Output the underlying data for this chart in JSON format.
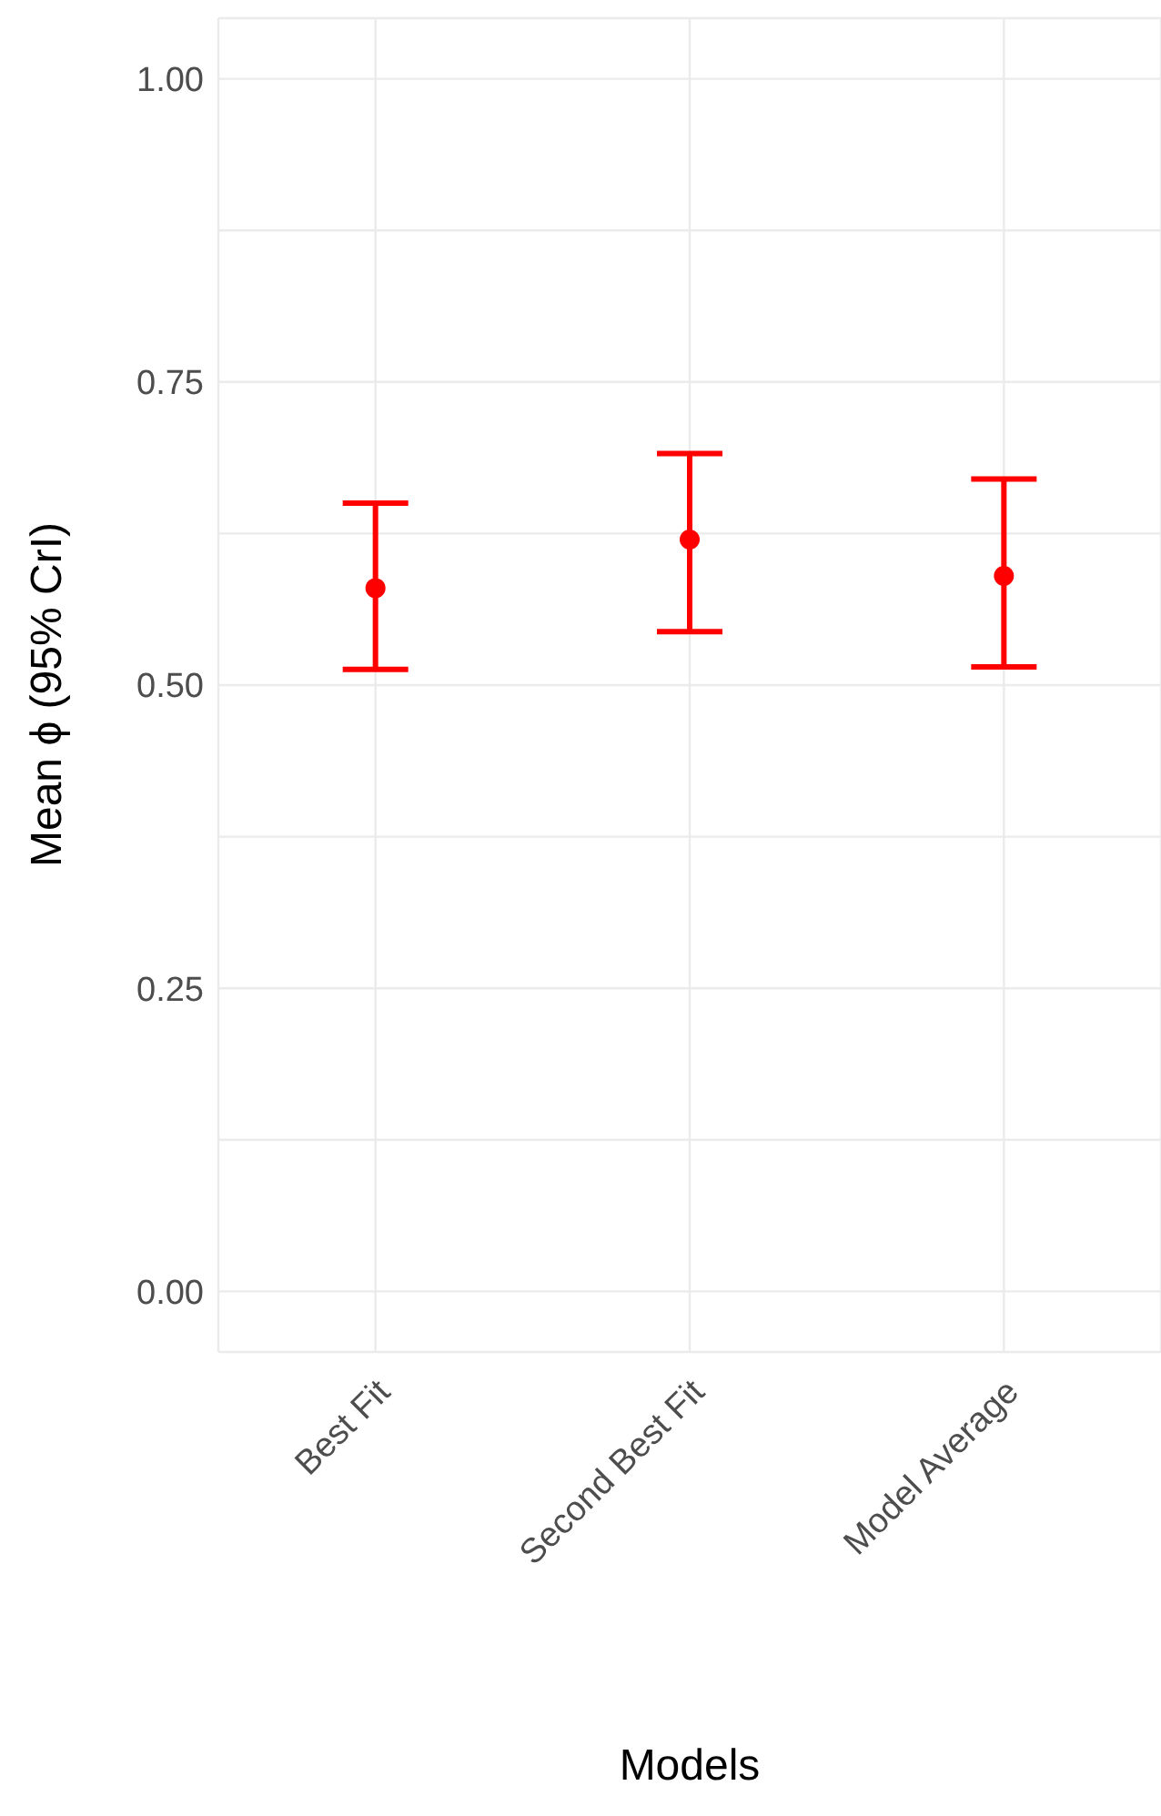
{
  "chart_data": {
    "type": "scatter",
    "xlabel": "Models",
    "ylabel": "Mean ϕ (95% CrI)",
    "categories": [
      "Best Fit",
      "Second Best Fit",
      "Model Average"
    ],
    "series": [
      {
        "color": "#ff0000",
        "values": [
          0.58,
          0.62,
          0.59
        ],
        "errors": [
          [
            0.513,
            0.65
          ],
          [
            0.544,
            0.691
          ],
          [
            0.515,
            0.67
          ]
        ]
      }
    ],
    "ylim": [
      -0.05,
      1.05
    ],
    "yticks": [
      {
        "value": 0,
        "label": "0.00"
      },
      {
        "value": 0.125,
        "label": null
      },
      {
        "value": 0.25,
        "label": "0.25"
      },
      {
        "value": 0.375,
        "label": null
      },
      {
        "value": 0.5,
        "label": "0.50"
      },
      {
        "value": 0.625,
        "label": null
      },
      {
        "value": 0.75,
        "label": "0.75"
      },
      {
        "value": 0.875,
        "label": null
      },
      {
        "value": 1,
        "label": "1.00"
      }
    ],
    "grid": true,
    "marker": "circle",
    "legend": false
  }
}
